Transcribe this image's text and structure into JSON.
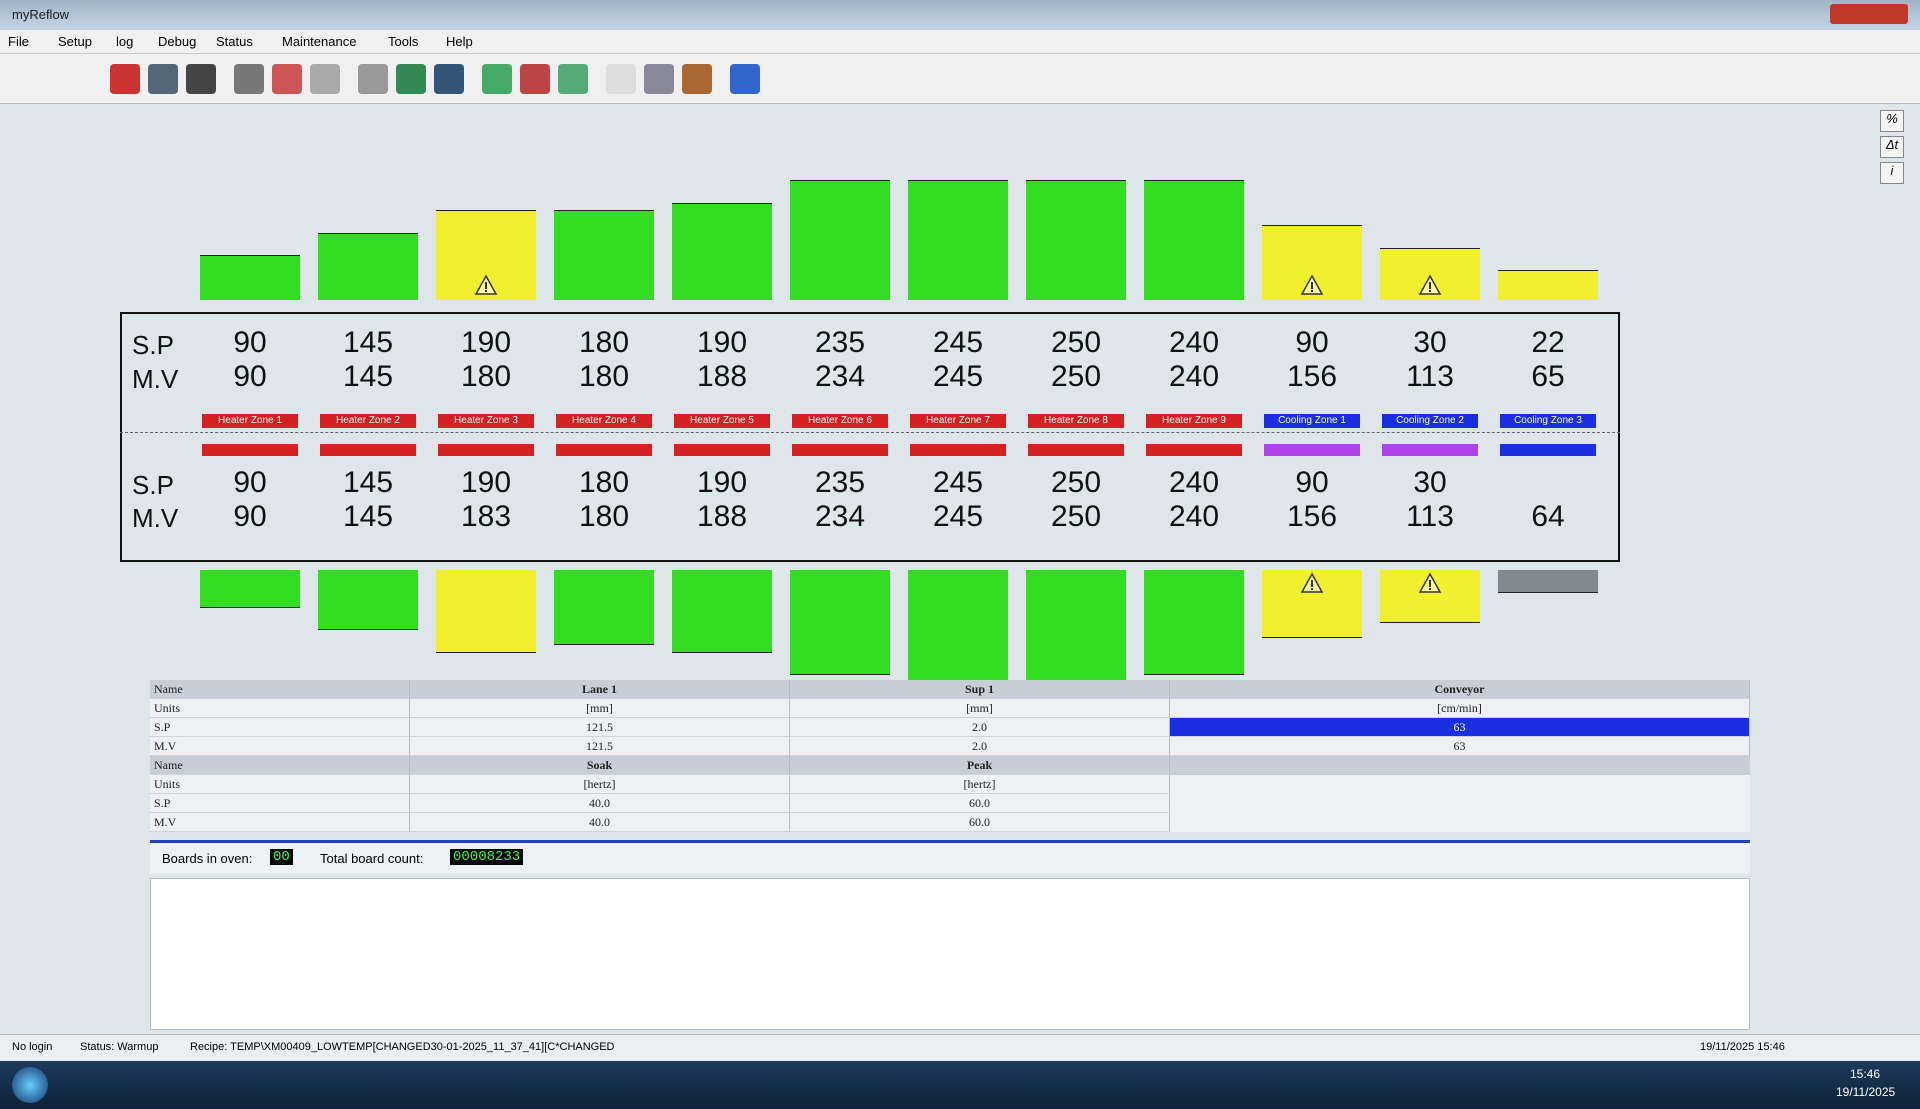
{
  "window": {
    "title": "myReflow",
    "menu": [
      "File",
      "Setup",
      "log",
      "Debug",
      "Status",
      "Maintenance",
      "Tools",
      "Help"
    ]
  },
  "side_buttons": [
    "%",
    "Δt",
    "i"
  ],
  "zones": {
    "row_labels": {
      "sp": "S.P",
      "mv": "M.V"
    },
    "names": [
      "Heater Zone 1",
      "Heater Zone 2",
      "Heater Zone 3",
      "Heater Zone 4",
      "Heater Zone 5",
      "Heater Zone 6",
      "Heater Zone 7",
      "Heater Zone 8",
      "Heater Zone 9",
      "Cooling Zone 1",
      "Cooling Zone 2",
      "Cooling Zone 3"
    ],
    "top": {
      "sp": [
        90,
        145,
        190,
        180,
        190,
        235,
        245,
        250,
        240,
        90,
        30,
        22
      ],
      "mv": [
        90,
        145,
        180,
        180,
        188,
        234,
        245,
        250,
        240,
        156,
        113,
        65
      ]
    },
    "bottom": {
      "sp": [
        90,
        145,
        190,
        180,
        190,
        235,
        245,
        250,
        240,
        90,
        30,
        null
      ],
      "mv": [
        90,
        145,
        183,
        180,
        188,
        234,
        245,
        250,
        240,
        156,
        113,
        64
      ]
    }
  },
  "table": {
    "rows": [
      [
        "Name",
        "Lane 1",
        "Sup 1",
        "Conveyor"
      ],
      [
        "Units",
        "[mm]",
        "[mm]",
        "[cm/min]"
      ],
      [
        "S.P",
        "121.5",
        "2.0",
        "63"
      ],
      [
        "M.V",
        "121.5",
        "2.0",
        "63"
      ],
      [
        "Name",
        "Soak",
        "Peak"
      ],
      [
        "Units",
        "[hertz]",
        "[hertz]"
      ],
      [
        "S.P",
        "40.0",
        "60.0"
      ],
      [
        "M.V",
        "40.0",
        "60.0"
      ]
    ]
  },
  "counters": {
    "boards_label": "Boards in oven:",
    "boards": "00",
    "total_label": "Total board count:",
    "total": "00008233"
  },
  "status_bar": {
    "login": "No login",
    "status": "Status: Warmup",
    "recipe": "Recipe: TEMP\\XM00409_LOWTEMP[CHANGED30-01-2025_11_37_41][C*CHANGED"
  },
  "taskbar": {
    "datetime": "19/11/2025 15:46",
    "time": "15:46",
    "date": "19/11/2025"
  }
}
